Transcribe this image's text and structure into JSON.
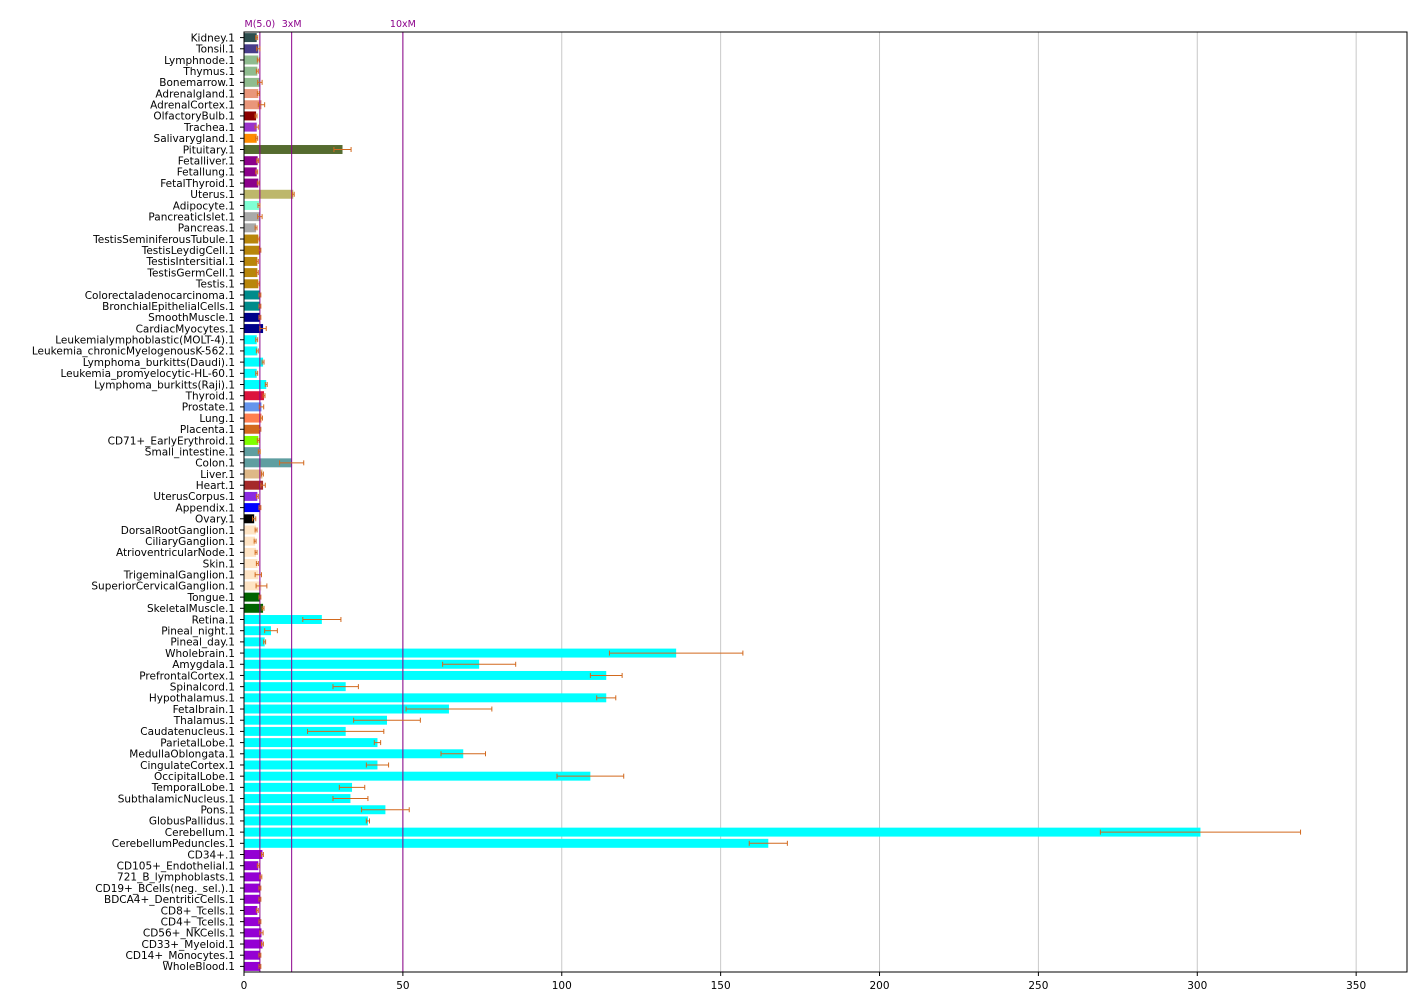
{
  "chart_data": {
    "type": "bar",
    "orientation": "horizontal",
    "title": "",
    "xlabel": "",
    "ylabel": "",
    "xlim": [
      0,
      366
    ],
    "xticks": [
      0,
      50,
      100,
      150,
      200,
      250,
      300,
      350
    ],
    "grid": "vertical",
    "error_bar_color": "#d2691e",
    "reference_lines": [
      {
        "label": "M(5.0)",
        "value": 5.0,
        "color": "#8b008b"
      },
      {
        "label": "3xM",
        "value": 15.0,
        "color": "#8b008b"
      },
      {
        "label": "10xM",
        "value": 50.0,
        "color": "#8b008b"
      }
    ],
    "categories": [
      "Kidney.1",
      "Tonsil.1",
      "Lymphnode.1",
      "Thymus.1",
      "Bonemarrow.1",
      "Adrenalgland.1",
      "AdrenalCortex.1",
      "OlfactoryBulb.1",
      "Trachea.1",
      "Salivarygland.1",
      "Pituitary.1",
      "Fetalliver.1",
      "Fetallung.1",
      "FetalThyroid.1",
      "Uterus.1",
      "Adipocyte.1",
      "PancreaticIslet.1",
      "Pancreas.1",
      "TestisSeminiferousTubule.1",
      "TestisLeydigCell.1",
      "TestisIntersitial.1",
      "TestisGermCell.1",
      "Testis.1",
      "Colorectaladenocarcinoma.1",
      "BronchialEpithelialCells.1",
      "SmoothMuscle.1",
      "CardiacMyocytes.1",
      "Leukemialymphoblastic(MOLT-4).1",
      "Leukemia_chronicMyelogenousK-562.1",
      "Lymphoma_burkitts(Daudi).1",
      "Leukemia_promyelocytic-HL-60.1",
      "Lymphoma_burkitts(Raji).1",
      "Thyroid.1",
      "Prostate.1",
      "Lung.1",
      "Placenta.1",
      "CD71+_EarlyErythroid.1",
      "Small_intestine.1",
      "Colon.1",
      "Liver.1",
      "Heart.1",
      "UterusCorpus.1",
      "Appendix.1",
      "Ovary.1",
      "DorsalRootGanglion.1",
      "CiliaryGanglion.1",
      "AtrioventricularNode.1",
      "Skin.1",
      "TrigeminalGanglion.1",
      "SuperiorCervicalGanglion.1",
      "Tongue.1",
      "SkeletalMuscle.1",
      "Retina.1",
      "Pineal_night.1",
      "Pineal_day.1",
      "Wholebrain.1",
      "Amygdala.1",
      "PrefrontalCortex.1",
      "Spinalcord.1",
      "Hypothalamus.1",
      "Fetalbrain.1",
      "Thalamus.1",
      "Caudatenucleus.1",
      "ParietalLobe.1",
      "MedullaOblongata.1",
      "CingulateCortex.1",
      "OccipitalLobe.1",
      "TemporalLobe.1",
      "SubthalamicNucleus.1",
      "Pons.1",
      "GlobusPallidus.1",
      "Cerebellum.1",
      "CerebellumPeduncles.1",
      "CD34+.1",
      "CD105+_Endothelial.1",
      "721_B_lymphoblasts.1",
      "CD19+_BCells(neg._sel.).1",
      "BDCA4+_DentriticCells.1",
      "CD8+_Tcells.1",
      "CD4+_Tcells.1",
      "CD56+_NKCells.1",
      "CD33+_Myeloid.1",
      "CD14+_Monocytes.1",
      "WholeBlood.1"
    ],
    "values": [
      4.0,
      4.5,
      4.5,
      4.2,
      5.0,
      4.5,
      5.5,
      3.8,
      4.0,
      4.0,
      31.0,
      4.3,
      4.0,
      4.5,
      15.5,
      4.7,
      5.0,
      3.8,
      4.5,
      5.0,
      4.2,
      4.2,
      4.5,
      5.0,
      5.0,
      5.0,
      6.0,
      4.0,
      4.2,
      6.0,
      4.0,
      7.0,
      6.3,
      5.5,
      5.5,
      5.0,
      4.5,
      4.8,
      15.0,
      5.8,
      6.0,
      4.2,
      5.0,
      3.2,
      3.8,
      3.5,
      3.8,
      4.2,
      4.5,
      5.5,
      5.0,
      6.0,
      24.5,
      8.5,
      6.5,
      136.0,
      74.0,
      114.0,
      32.0,
      114.0,
      64.5,
      45.0,
      32.0,
      42.0,
      69.0,
      42.0,
      109.0,
      34.0,
      33.5,
      44.5,
      39.0,
      301.0,
      165.0,
      5.8,
      4.5,
      5.3,
      5.0,
      5.0,
      4.2,
      5.0,
      5.5,
      5.8,
      5.0,
      5.0
    ],
    "errors": [
      0.3,
      0.5,
      0.3,
      0.3,
      0.7,
      0.3,
      1.0,
      0.3,
      0.5,
      0.3,
      2.7,
      0.3,
      0.3,
      0.3,
      0.3,
      0.3,
      0.7,
      0.3,
      0.3,
      0.3,
      0.3,
      0.3,
      0.3,
      0.3,
      0.3,
      0.3,
      1.0,
      0.3,
      0.3,
      0.3,
      0.3,
      0.3,
      0.3,
      0.7,
      0.3,
      0.3,
      0.3,
      0.3,
      3.8,
      0.3,
      0.7,
      0.3,
      0.3,
      0.5,
      0.3,
      0.3,
      0.3,
      0.3,
      1.0,
      1.7,
      0.3,
      0.3,
      6.0,
      2.0,
      0.3,
      21.0,
      11.5,
      5.0,
      4.0,
      3.0,
      13.5,
      10.5,
      12.0,
      1.0,
      7.0,
      3.5,
      10.5,
      4.0,
      5.5,
      7.5,
      0.5,
      31.5,
      6.0,
      0.3,
      0.3,
      0.3,
      0.3,
      0.3,
      0.3,
      0.3,
      0.5,
      0.3,
      0.3,
      0.3
    ],
    "colors": [
      "#2f4f4f",
      "#483d8b",
      "#8fbc8f",
      "#8fbc8f",
      "#8fbc8f",
      "#e9967a",
      "#e9967a",
      "#8b0000",
      "#9932cc",
      "#ff8c00",
      "#556b2f",
      "#8b008b",
      "#8b008b",
      "#8b008b",
      "#bdb76b",
      "#7fffd4",
      "#a9a9a9",
      "#a9a9a9",
      "#b8860b",
      "#b8860b",
      "#b8860b",
      "#b8860b",
      "#b8860b",
      "#008b8b",
      "#008b8b",
      "#00008b",
      "#00008b",
      "#00ffff",
      "#00ffff",
      "#00ffff",
      "#00ffff",
      "#00ffff",
      "#dc143c",
      "#6495ed",
      "#ff7f50",
      "#d2691e",
      "#7fff00",
      "#5f9ea0",
      "#5f9ea0",
      "#deb887",
      "#a52a2a",
      "#8a2be2",
      "#0000ff",
      "#000000",
      "#ffe4c4",
      "#ffe4c4",
      "#ffe4c4",
      "#ffe4c4",
      "#ffe4c4",
      "#ffe4c4",
      "#006400",
      "#006400",
      "#00ffff",
      "#00ffff",
      "#00ffff",
      "#00ffff",
      "#00ffff",
      "#00ffff",
      "#00ffff",
      "#00ffff",
      "#00ffff",
      "#00ffff",
      "#00ffff",
      "#00ffff",
      "#00ffff",
      "#00ffff",
      "#00ffff",
      "#00ffff",
      "#00ffff",
      "#00ffff",
      "#00ffff",
      "#00ffff",
      "#00ffff",
      "#9400d3",
      "#9400d3",
      "#9400d3",
      "#9400d3",
      "#9400d3",
      "#9400d3",
      "#9400d3",
      "#9400d3",
      "#9400d3",
      "#9400d3",
      "#9400d3"
    ]
  }
}
